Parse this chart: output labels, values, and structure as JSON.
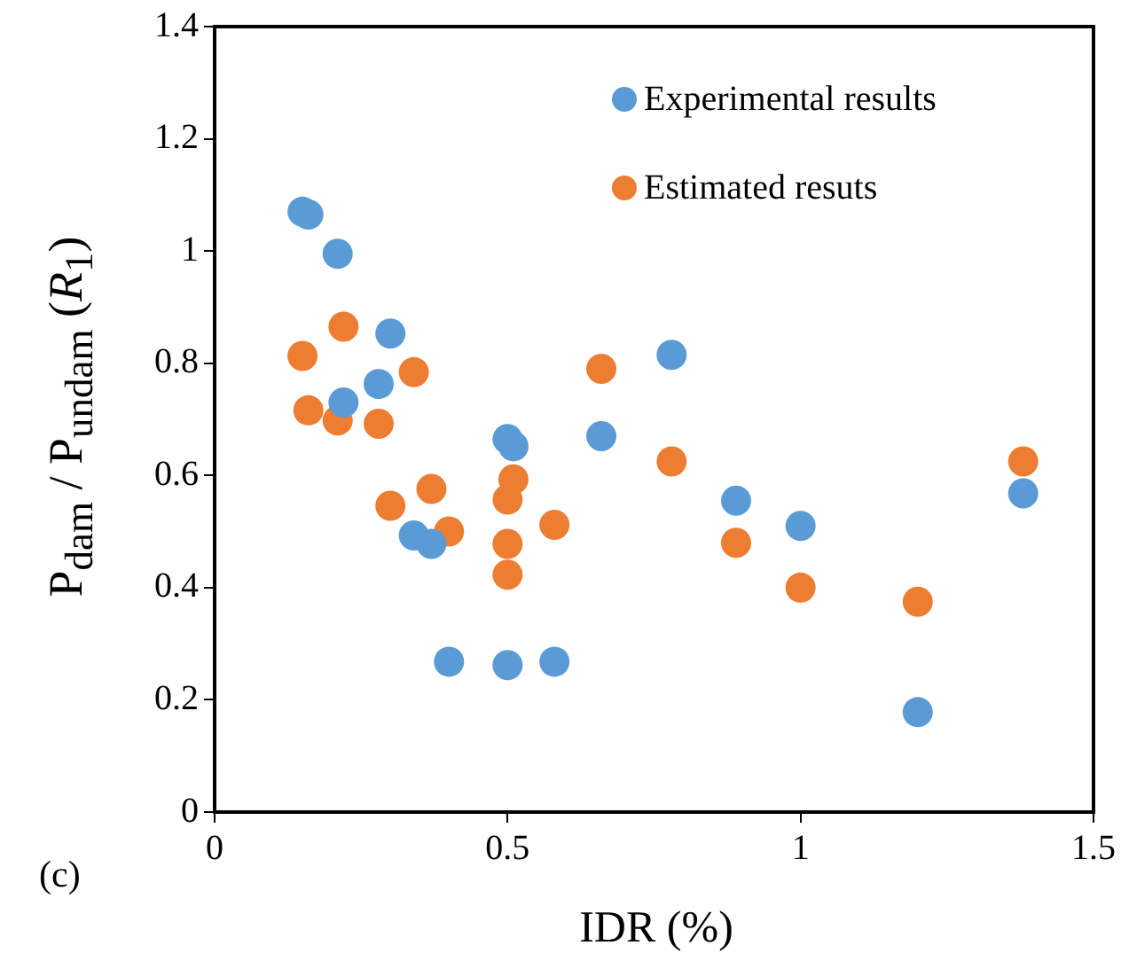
{
  "chart_data": {
    "type": "scatter",
    "xlabel": "IDR (%)",
    "ylabel": "P$_{dam}$ / P$_{undam}$ (R$_{1}$)",
    "annotations": [
      "(c)"
    ],
    "xlim": [
      0,
      1.5
    ],
    "xticks": [
      0,
      0.5,
      1,
      1.5
    ],
    "ylim": [
      0,
      1.4
    ],
    "yticks": [
      0,
      0.2,
      0.4,
      0.6,
      0.8,
      1,
      1.2,
      1.4
    ],
    "grid": false,
    "legend": "top right",
    "marker": "circle",
    "series": [
      {
        "name": "Experimental results",
        "color": "#5b9bd5",
        "x": [
          0.15,
          0.16,
          0.21,
          0.22,
          0.28,
          0.3,
          0.34,
          0.37,
          0.4,
          0.5,
          0.51,
          0.5,
          0.58,
          0.66,
          0.78,
          0.89,
          1.0,
          1.2,
          1.38
        ],
        "values": [
          1.07,
          1.065,
          0.995,
          0.73,
          0.763,
          0.853,
          0.493,
          0.478,
          0.268,
          0.665,
          0.652,
          0.262,
          0.268,
          0.67,
          0.815,
          0.555,
          0.51,
          0.178,
          0.568
        ]
      },
      {
        "name": "Estimated resuts",
        "color": "#ed7d31",
        "x": [
          0.15,
          0.16,
          0.21,
          0.22,
          0.28,
          0.3,
          0.34,
          0.37,
          0.4,
          0.5,
          0.51,
          0.5,
          0.5,
          0.58,
          0.66,
          0.78,
          0.89,
          1.0,
          1.2,
          1.38
        ],
        "values": [
          0.813,
          0.716,
          0.698,
          0.865,
          0.692,
          0.546,
          0.784,
          0.576,
          0.5,
          0.557,
          0.593,
          0.478,
          0.423,
          0.512,
          0.79,
          0.625,
          0.48,
          0.4,
          0.375,
          0.625
        ]
      }
    ]
  }
}
